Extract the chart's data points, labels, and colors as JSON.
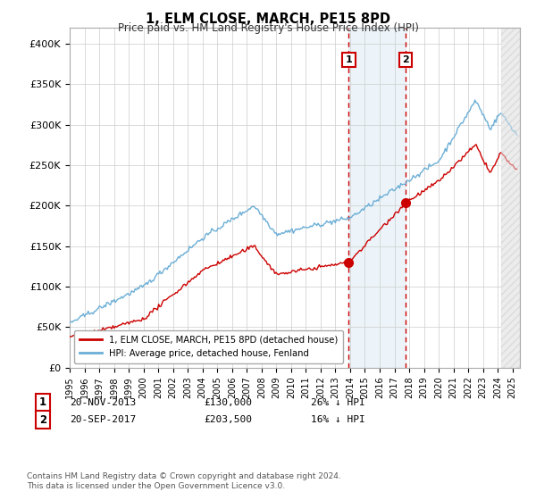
{
  "title": "1, ELM CLOSE, MARCH, PE15 8PD",
  "subtitle": "Price paid vs. HM Land Registry's House Price Index (HPI)",
  "hpi_color": "#6baed6",
  "price_color": "#cc0000",
  "shaded_color": "#daeaf5",
  "marker1_date_x": 2013.9,
  "marker2_date_x": 2017.75,
  "marker1_price": 130000,
  "marker2_price": 203500,
  "ylim": [
    0,
    420000
  ],
  "xlim_start": 1995.0,
  "xlim_end": 2025.5,
  "future_shade_start": 2024.25,
  "yticks": [
    0,
    50000,
    100000,
    150000,
    200000,
    250000,
    300000,
    350000,
    400000
  ],
  "xtick_years": [
    1995,
    1996,
    1997,
    1998,
    1999,
    2000,
    2001,
    2002,
    2003,
    2004,
    2005,
    2006,
    2007,
    2008,
    2009,
    2010,
    2011,
    2012,
    2013,
    2014,
    2015,
    2016,
    2017,
    2018,
    2019,
    2020,
    2021,
    2022,
    2023,
    2024,
    2025
  ],
  "legend_label_red": "1, ELM CLOSE, MARCH, PE15 8PD (detached house)",
  "legend_label_blue": "HPI: Average price, detached house, Fenland",
  "footer": "Contains HM Land Registry data © Crown copyright and database right 2024.\nThis data is licensed under the Open Government Licence v3.0.",
  "background_color": "#ffffff",
  "grid_color": "#cccccc"
}
